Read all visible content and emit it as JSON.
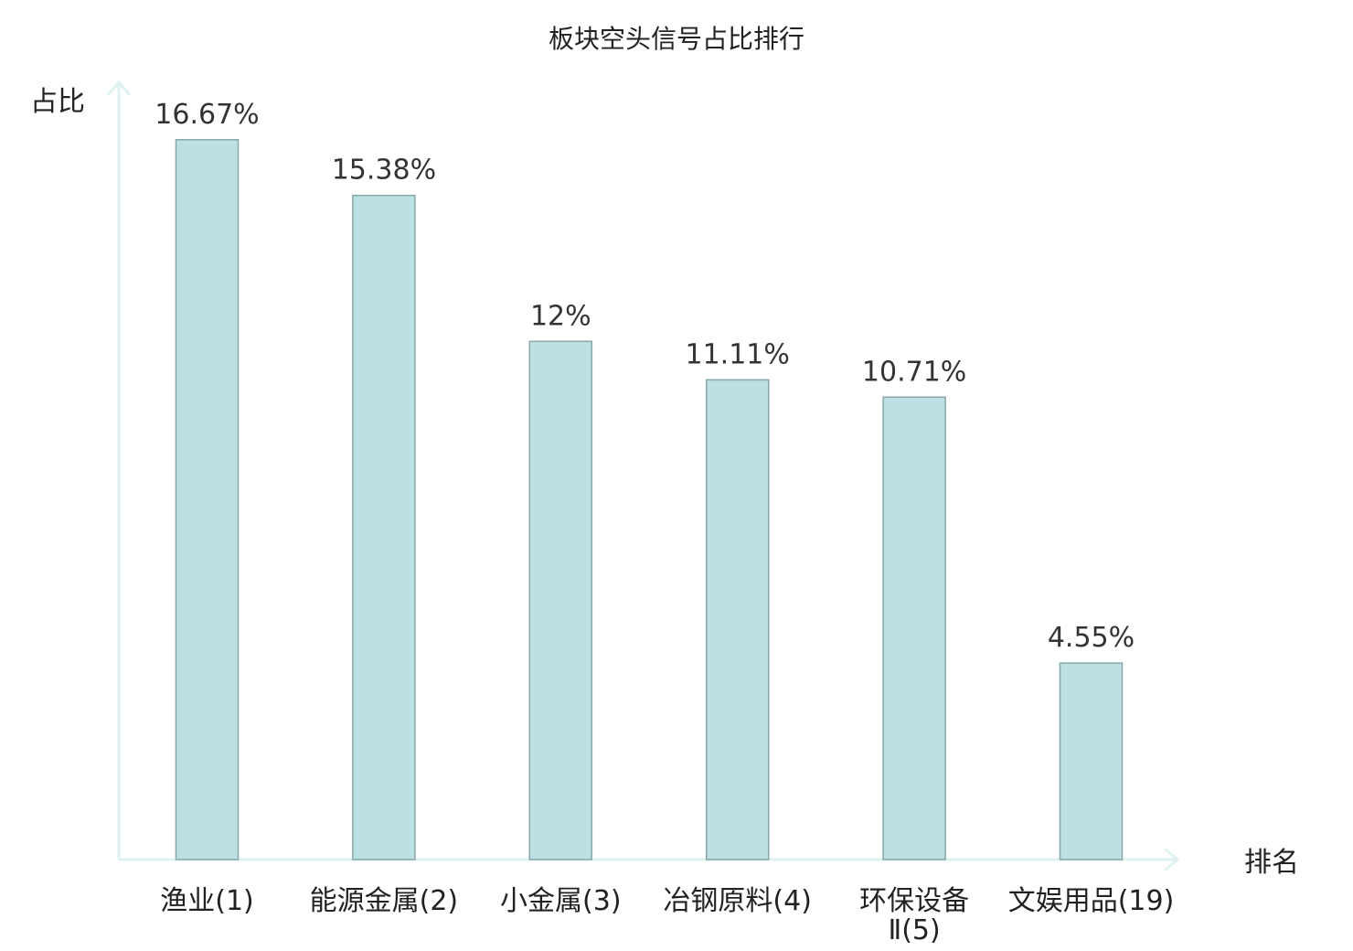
{
  "chart_data": {
    "type": "bar",
    "title": "板块空头信号占比排行",
    "ylabel": "占比",
    "xlabel": "排名",
    "categories": [
      [
        "渔业(1)"
      ],
      [
        "能源金属(2)"
      ],
      [
        "小金属(3)"
      ],
      [
        "冶钢原料(4)"
      ],
      [
        "环保设备",
        "Ⅱ(5)"
      ],
      [
        "文娱用品(19)"
      ]
    ],
    "values": [
      16.67,
      15.38,
      12,
      11.11,
      10.71,
      4.55
    ],
    "value_labels": [
      "16.67%",
      "15.38%",
      "12%",
      "11.11%",
      "10.71%",
      "4.55%"
    ],
    "highlight_index": 5,
    "ylim": [
      0,
      18
    ],
    "grid": false,
    "colors": {
      "bar_fill": "#bde0e3",
      "bar_stroke": "#86a8ab",
      "axis": "#dff1f0",
      "highlight_text": "#e0141a",
      "text": "#222222"
    }
  }
}
